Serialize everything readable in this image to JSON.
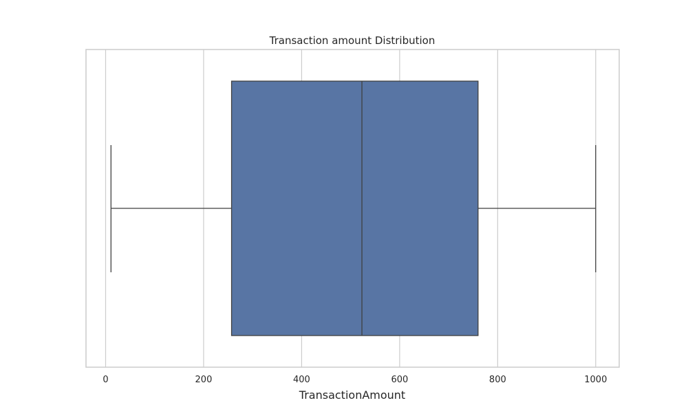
{
  "chart_data": {
    "type": "box",
    "title": "Transaction amount Distribution",
    "xlabel": "TransactionAmount",
    "ylabel": "",
    "xlim": [
      -40,
      1048
    ],
    "xticks": [
      0,
      200,
      400,
      600,
      800,
      1000
    ],
    "orientation": "horizontal",
    "grid": "vertical",
    "series": [
      {
        "whisker_low": 11,
        "q1": 257,
        "median": 523,
        "q3": 760,
        "whisker_high": 1000
      }
    ]
  },
  "colors": {
    "box_fill": "#5875a4",
    "box_line": "#3f3f3f",
    "grid": "#cccccc",
    "frame": "#cccccc",
    "text": "#262626"
  }
}
